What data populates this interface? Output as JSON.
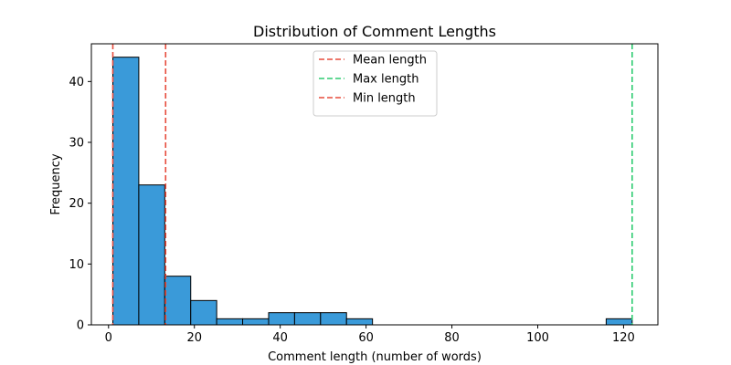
{
  "chart_data": {
    "type": "bar",
    "title": "Distribution of Comment Lengths",
    "xlabel": "Comment length (number of words)",
    "ylabel": "Frequency",
    "xlim": [
      -4,
      128
    ],
    "ylim": [
      0,
      46.2
    ],
    "xticks": [
      0,
      20,
      40,
      60,
      80,
      100,
      120
    ],
    "yticks": [
      0,
      10,
      20,
      30,
      40
    ],
    "bins": {
      "start": 1,
      "width": 6.05,
      "counts": [
        44,
        23,
        8,
        4,
        1,
        1,
        2,
        2,
        2,
        1,
        0,
        0,
        0,
        0,
        0,
        0,
        0,
        0,
        0,
        1
      ]
    },
    "bar_color": "#3a9ad9",
    "bar_edge_color": "#000000",
    "grid": false,
    "legend_position": "upper center",
    "reference_lines": [
      {
        "name": "Mean length",
        "x": 13.3,
        "color": "#e74c3c",
        "style": "dashed"
      },
      {
        "name": "Max length",
        "x": 122,
        "color": "#2ecc71",
        "style": "dashed"
      },
      {
        "name": "Min length",
        "x": 1,
        "color": "#e74c3c",
        "style": "dashed"
      }
    ]
  }
}
